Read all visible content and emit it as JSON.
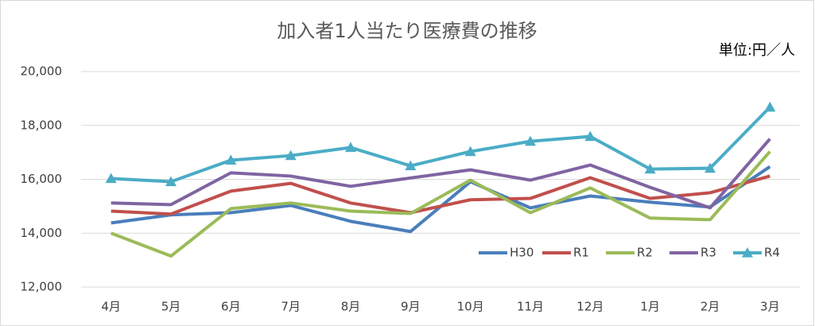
{
  "chart_data": {
    "type": "line",
    "title": "加入者1人当たり医療費の推移",
    "unit_label": "単位:円／人",
    "categories": [
      "4月",
      "5月",
      "6月",
      "7月",
      "8月",
      "9月",
      "10月",
      "11月",
      "12月",
      "1月",
      "2月",
      "3月"
    ],
    "ylim": [
      12000,
      20000
    ],
    "yticks": [
      {
        "value": 12000,
        "label": "12,000"
      },
      {
        "value": 14000,
        "label": "14,000"
      },
      {
        "value": 16000,
        "label": "16,000"
      },
      {
        "value": 18000,
        "label": "18,000"
      },
      {
        "value": 20000,
        "label": "20,000"
      }
    ],
    "grid": true,
    "legend": "lower right",
    "series": [
      {
        "name": "H30",
        "color": "#4a7ebb",
        "values": [
          14380,
          14680,
          14760,
          15030,
          14440,
          14060,
          15910,
          14940,
          15380,
          15150,
          14970,
          16470
        ]
      },
      {
        "name": "R1",
        "color": "#c0504d",
        "values": [
          14820,
          14710,
          15560,
          15850,
          15120,
          14760,
          15240,
          15290,
          16060,
          15290,
          15500,
          16120
        ]
      },
      {
        "name": "R2",
        "color": "#9bbb59",
        "values": [
          14000,
          13150,
          14910,
          15120,
          14820,
          14730,
          15970,
          14760,
          15680,
          14560,
          14500,
          17030
        ]
      },
      {
        "name": "R3",
        "color": "#8064a2",
        "values": [
          15120,
          15060,
          16240,
          16120,
          15740,
          16050,
          16350,
          15970,
          16530,
          15700,
          14940,
          17500
        ]
      },
      {
        "name": "R4",
        "color": "#4bacc6",
        "marker": "triangle",
        "values": [
          16030,
          15910,
          16710,
          16880,
          17180,
          16500,
          17030,
          17410,
          17590,
          16380,
          16410,
          18680
        ]
      }
    ]
  }
}
